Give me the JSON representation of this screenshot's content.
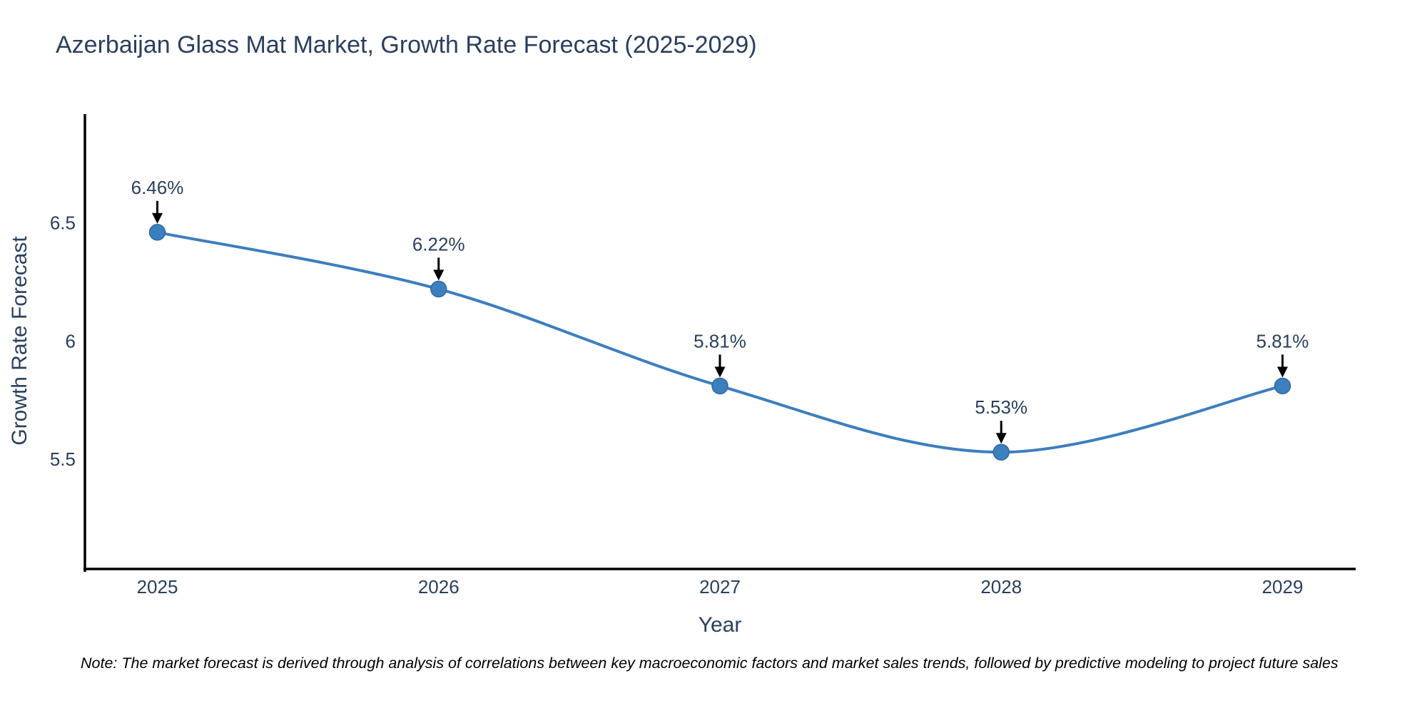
{
  "title": "Azerbaijan Glass Mat Market, Growth Rate Forecast (2025-2029)",
  "note": "Note: The market forecast is derived through analysis of correlations between key macroeconomic factors and market sales trends, followed by predictive modeling to project future sales",
  "chart_data": {
    "type": "line",
    "title": "Azerbaijan Glass Mat Market, Growth Rate Forecast (2025-2029)",
    "xlabel": "Year",
    "ylabel": "Growth Rate Forecast",
    "x": [
      2025,
      2026,
      2027,
      2028,
      2029
    ],
    "values": [
      6.46,
      6.22,
      5.81,
      5.53,
      5.81
    ],
    "point_labels": [
      "6.46%",
      "6.22%",
      "5.81%",
      "5.53%",
      "5.81%"
    ],
    "x_tick_labels": [
      "2025",
      "2026",
      "2027",
      "2028",
      "2029"
    ],
    "y_ticks": [
      5.5,
      6,
      6.5
    ],
    "y_tick_labels": [
      "5.5",
      "6",
      "6.5"
    ],
    "xlim": [
      2024.74,
      2029.26
    ],
    "ylim": [
      5.03,
      6.96
    ],
    "line_shape": "spline",
    "grid": false,
    "legend_position": "none",
    "colors": {
      "line": "#3d7ebf",
      "marker": "#3d7ebf",
      "marker_edge": "#2f6ba3",
      "axis_line": "#000000",
      "tick_text": "#2a3f5f",
      "annotation_text": "#2a3f5f",
      "annotation_arrow": "#000000",
      "note_text": "#000000",
      "background": "#ffffff"
    }
  }
}
